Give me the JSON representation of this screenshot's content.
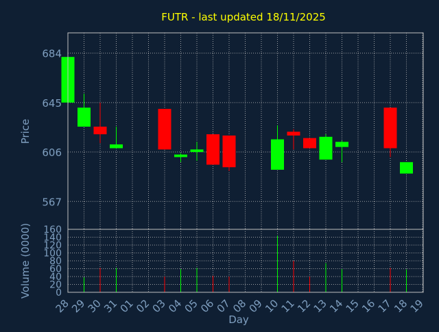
{
  "chart_data": {
    "type": "candlestick",
    "title": "FUTR - last updated 18/11/2025",
    "xlabel": "Day",
    "colors": {
      "background": "#0f1f33",
      "title": "#ffff00",
      "axis_text": "#7f9fc0",
      "axis_line": "#c0c0c0",
      "grid": "#c0c0c0",
      "up": "#00ff00",
      "down": "#ff0000"
    },
    "x_ticks": [
      "28",
      "29",
      "30",
      "31",
      "01",
      "02",
      "03",
      "04",
      "05",
      "06",
      "07",
      "08",
      "09",
      "10",
      "11",
      "12",
      "13",
      "14",
      "15",
      "16",
      "17",
      "18",
      "19"
    ],
    "price_panel": {
      "ylabel": "Price",
      "ylim": [
        545,
        700
      ],
      "yticks": [
        567,
        606,
        645,
        684
      ],
      "candles": [
        {
          "day": "28",
          "open": 645,
          "high": 681,
          "low": 645,
          "close": 681
        },
        {
          "day": "29",
          "open": 626,
          "high": 652,
          "low": 626,
          "close": 641
        },
        {
          "day": "30",
          "open": 626,
          "high": 645,
          "low": 613,
          "close": 620
        },
        {
          "day": "31",
          "open": 609,
          "high": 626,
          "low": 609,
          "close": 612
        },
        {
          "day": "03",
          "open": 640,
          "high": 640,
          "low": 608,
          "close": 608
        },
        {
          "day": "04",
          "open": 602,
          "high": 605,
          "low": 598,
          "close": 604
        },
        {
          "day": "05",
          "open": 606,
          "high": 614,
          "low": 599,
          "close": 608
        },
        {
          "day": "06",
          "open": 620,
          "high": 620,
          "low": 596,
          "close": 596
        },
        {
          "day": "07",
          "open": 619,
          "high": 619,
          "low": 591,
          "close": 594
        },
        {
          "day": "10",
          "open": 592,
          "high": 627,
          "low": 592,
          "close": 616
        },
        {
          "day": "11",
          "open": 622,
          "high": 624,
          "low": 608,
          "close": 619
        },
        {
          "day": "12",
          "open": 617,
          "high": 617,
          "low": 609,
          "close": 609
        },
        {
          "day": "13",
          "open": 600,
          "high": 620,
          "low": 600,
          "close": 618
        },
        {
          "day": "14",
          "open": 610,
          "high": 615,
          "low": 598,
          "close": 614
        },
        {
          "day": "17",
          "open": 641,
          "high": 641,
          "low": 602,
          "close": 609
        },
        {
          "day": "18",
          "open": 589,
          "high": 598,
          "low": 589,
          "close": 598
        }
      ]
    },
    "volume_panel": {
      "ylabel": "Volume (0000)",
      "ylim": [
        0,
        160
      ],
      "yticks": [
        0,
        20,
        40,
        60,
        80,
        100,
        120,
        140,
        160
      ],
      "bars": [
        {
          "day": "29",
          "value": 38,
          "direction": "up"
        },
        {
          "day": "30",
          "value": 62,
          "direction": "down"
        },
        {
          "day": "31",
          "value": 62,
          "direction": "up"
        },
        {
          "day": "03",
          "value": 40,
          "direction": "down"
        },
        {
          "day": "04",
          "value": 59,
          "direction": "up"
        },
        {
          "day": "05",
          "value": 62,
          "direction": "up"
        },
        {
          "day": "06",
          "value": 42,
          "direction": "down"
        },
        {
          "day": "07",
          "value": 40,
          "direction": "down"
        },
        {
          "day": "10",
          "value": 144,
          "direction": "up"
        },
        {
          "day": "11",
          "value": 80,
          "direction": "down"
        },
        {
          "day": "12",
          "value": 40,
          "direction": "down"
        },
        {
          "day": "13",
          "value": 74,
          "direction": "up"
        },
        {
          "day": "14",
          "value": 59,
          "direction": "up"
        },
        {
          "day": "17",
          "value": 62,
          "direction": "down"
        },
        {
          "day": "18",
          "value": 58,
          "direction": "up"
        }
      ]
    },
    "grid": true
  }
}
